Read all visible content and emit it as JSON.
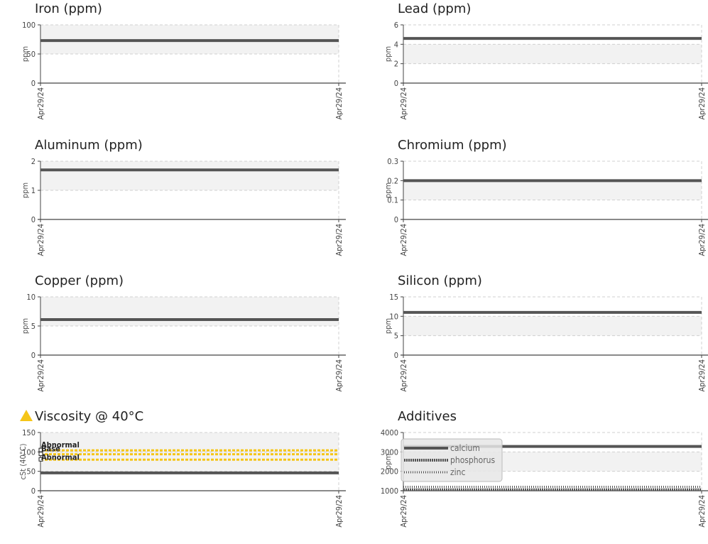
{
  "warning_color": "#f5c518",
  "line_color": "#555555",
  "band_color": "#f2f2f2",
  "chart_data": [
    {
      "id": "iron",
      "type": "line",
      "title": "Iron (ppm)",
      "ylabel": "ppm",
      "ylim": [
        0,
        100
      ],
      "yticks": [
        "0",
        "50",
        "100"
      ],
      "x": [
        "Apr29/24",
        "Apr29/24"
      ],
      "band": [
        50,
        100
      ],
      "series": [
        {
          "values": [
            73,
            73
          ],
          "style": "solid"
        }
      ]
    },
    {
      "id": "lead",
      "type": "line",
      "title": "Lead (ppm)",
      "ylabel": "ppm",
      "ylim": [
        0,
        6
      ],
      "yticks": [
        "0",
        "2",
        "4",
        "6"
      ],
      "x": [
        "Apr29/24",
        "Apr29/24"
      ],
      "band": [
        2,
        4
      ],
      "series": [
        {
          "values": [
            4.6,
            4.6
          ],
          "style": "solid"
        }
      ]
    },
    {
      "id": "aluminum",
      "type": "line",
      "title": "Aluminum (ppm)",
      "ylabel": "ppm",
      "ylim": [
        0,
        2
      ],
      "yticks": [
        "0",
        "1",
        "2"
      ],
      "x": [
        "Apr29/24",
        "Apr29/24"
      ],
      "band": [
        1,
        2
      ],
      "series": [
        {
          "values": [
            1.7,
            1.7
          ],
          "style": "solid"
        }
      ]
    },
    {
      "id": "chromium",
      "type": "line",
      "title": "Chromium (ppm)",
      "ylabel": "ppm",
      "ylim": [
        0,
        0.3
      ],
      "yticks": [
        "0",
        "0.1",
        "0.2",
        "0.3"
      ],
      "x": [
        "Apr29/24",
        "Apr29/24"
      ],
      "band": [
        0.1,
        0.2
      ],
      "series": [
        {
          "values": [
            0.2,
            0.2
          ],
          "style": "solid"
        }
      ]
    },
    {
      "id": "copper",
      "type": "line",
      "title": "Copper (ppm)",
      "ylabel": "ppm",
      "ylim": [
        0,
        10
      ],
      "yticks": [
        "0",
        "5",
        "10"
      ],
      "x": [
        "Apr29/24",
        "Apr29/24"
      ],
      "band": [
        5,
        10
      ],
      "series": [
        {
          "values": [
            6.1,
            6.1
          ],
          "style": "solid"
        }
      ]
    },
    {
      "id": "silicon",
      "type": "line",
      "title": "Silicon (ppm)",
      "ylabel": "ppm",
      "ylim": [
        0,
        15
      ],
      "yticks": [
        "0",
        "5",
        "10",
        "15"
      ],
      "x": [
        "Apr29/24",
        "Apr29/24"
      ],
      "band": [
        5,
        10
      ],
      "series": [
        {
          "values": [
            11,
            11
          ],
          "style": "solid"
        }
      ]
    },
    {
      "id": "viscosity",
      "type": "line",
      "title": "Viscosity @ 40°C",
      "ylabel": "cSt (40°C)",
      "warning": true,
      "ylim": [
        0,
        150
      ],
      "yticks": [
        "0",
        "50",
        "100",
        "150"
      ],
      "x": [
        "Apr29/24",
        "Apr29/24"
      ],
      "band": [
        50,
        150
      ],
      "refs": [
        {
          "value": 104,
          "label": "Abnormal"
        },
        {
          "value": 94,
          "label": "Base"
        },
        {
          "value": 80,
          "label": "Abnormal"
        }
      ],
      "series": [
        {
          "values": [
            46,
            46
          ],
          "style": "solid"
        }
      ]
    },
    {
      "id": "additives",
      "type": "line",
      "title": "Additives",
      "ylabel": "ppm",
      "ylim": [
        1000,
        4000
      ],
      "yticks": [
        "1000",
        "2000",
        "3000",
        "4000"
      ],
      "x": [
        "Apr29/24",
        "Apr29/24"
      ],
      "band": [
        2000,
        3000
      ],
      "legend_position": "top-left",
      "series": [
        {
          "name": "calcium",
          "values": [
            3280,
            3280
          ],
          "style": "solid"
        },
        {
          "name": "phosphorus",
          "values": [
            1050,
            1050
          ],
          "style": "dotted"
        },
        {
          "name": "zinc",
          "values": [
            1200,
            1200
          ],
          "style": "zigzag"
        }
      ]
    }
  ]
}
